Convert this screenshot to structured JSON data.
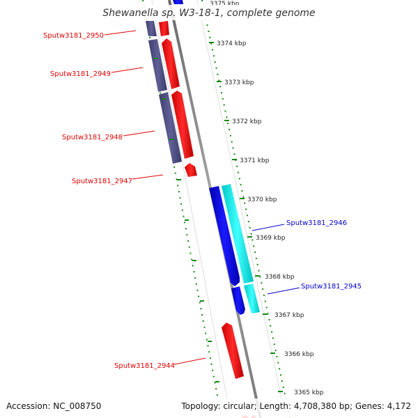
{
  "title": "Shewanella sp. W3-18-1, complete genome",
  "footer": {
    "accession": "Accession: NC_008750",
    "summary": "Topology: circular; Length: 4,708,380 bp; Genes: 4,172"
  },
  "ticks": [
    "3375 kbp",
    "3374 kbp",
    "3373 kbp",
    "3372 kbp",
    "3371 kbp",
    "3370 kbp",
    "3369 kbp",
    "3368 kbp",
    "3367 kbp",
    "3366 kbp",
    "3365 kbp"
  ],
  "genes": {
    "g2950": "Sputw3181_2950",
    "g2949": "Sputw3181_2949",
    "g2948": "Sputw3181_2948",
    "g2947": "Sputw3181_2947",
    "g2946": "Sputw3181_2946",
    "g2945": "Sputw3181_2945",
    "g2944": "Sputw3181_2944"
  },
  "colors": {
    "forward_cds": "#ff0000",
    "reverse_cds": "#0000ff",
    "cog_forward": "#55558c",
    "cog_reverse": "#00ffff",
    "backbone": "#888888",
    "ticks": "#118811",
    "label_forward": "#dd0000",
    "label_reverse": "#0000cc"
  }
}
